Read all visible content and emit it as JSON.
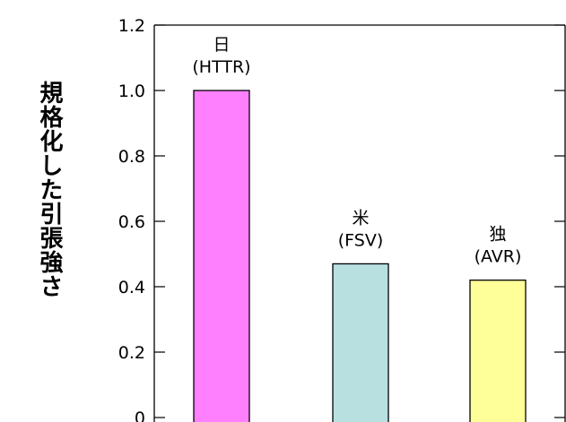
{
  "chart_data": {
    "type": "bar",
    "title": "",
    "xlabel": "",
    "ylabel": "規格化した引張強さ",
    "ylim": [
      0,
      1.2
    ],
    "yticks": [
      "0",
      "0.2",
      "0.4",
      "0.6",
      "0.8",
      "1.0",
      "1.2"
    ],
    "grid": false,
    "categories": [
      {
        "country": "日",
        "reactor": "(HTTR)"
      },
      {
        "country": "米",
        "reactor": "(FSV)"
      },
      {
        "country": "独",
        "reactor": "(AVR)"
      }
    ],
    "values": [
      1.0,
      0.47,
      0.42
    ],
    "colors": [
      "#ff80ff",
      "#b8e0e0",
      "#ffff99"
    ]
  }
}
